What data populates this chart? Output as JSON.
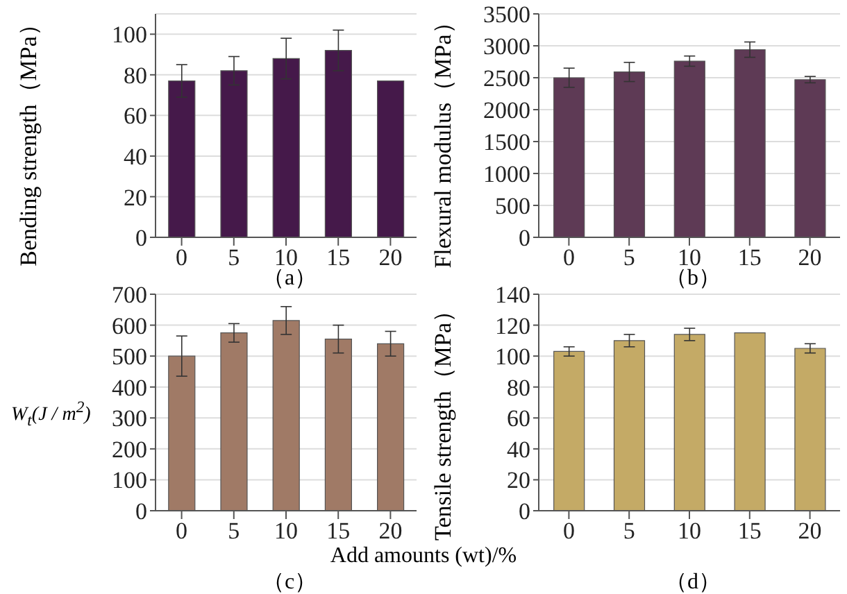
{
  "chart_data": [
    {
      "type": "bar",
      "title": "（a）",
      "ylabel": "Bending strength（MPa）",
      "categories": [
        "0",
        "5",
        "10",
        "15",
        "20"
      ],
      "values": [
        77,
        82,
        88,
        92,
        77
      ],
      "errors": [
        8,
        7,
        10,
        10,
        null
      ],
      "color": "#45194a",
      "ylim": [
        0,
        110
      ],
      "yticks": [
        0,
        20,
        40,
        60,
        80,
        100
      ],
      "grid": "y"
    },
    {
      "type": "bar",
      "title": "（b）",
      "ylabel": "Flexural modulus（MPa）",
      "categories": [
        "0",
        "5",
        "10",
        "15",
        "20"
      ],
      "values": [
        2500,
        2590,
        2760,
        2940,
        2470
      ],
      "errors": [
        150,
        150,
        80,
        120,
        50
      ],
      "color": "#5e3a55",
      "ylim": [
        0,
        3500
      ],
      "yticks": [
        0,
        500,
        1000,
        1500,
        2000,
        2500,
        3000,
        3500
      ],
      "grid": "y"
    },
    {
      "type": "bar",
      "title": "（c）",
      "xlabel": "Add amounts (wt)/%",
      "ylabel": "W$_{t}$(J / m$^{2}$)",
      "categories": [
        "0",
        "5",
        "10",
        "15",
        "20"
      ],
      "values": [
        500,
        575,
        615,
        555,
        540
      ],
      "errors": [
        65,
        30,
        45,
        45,
        40
      ],
      "color": "#a07a66",
      "ylim": [
        0,
        700
      ],
      "yticks": [
        0,
        100,
        200,
        300,
        400,
        500,
        600,
        700
      ],
      "grid": "y"
    },
    {
      "type": "bar",
      "title": "（d）",
      "ylabel": "Tensile strength（MPa）",
      "categories": [
        "0",
        "5",
        "10",
        "15",
        "20"
      ],
      "values": [
        103,
        110,
        114,
        115,
        105
      ],
      "errors": [
        3,
        4,
        4,
        null,
        3
      ],
      "color": "#c4aa66",
      "ylim": [
        0,
        140
      ],
      "yticks": [
        0,
        20,
        40,
        60,
        80,
        100,
        120,
        140
      ],
      "grid": "y"
    }
  ]
}
